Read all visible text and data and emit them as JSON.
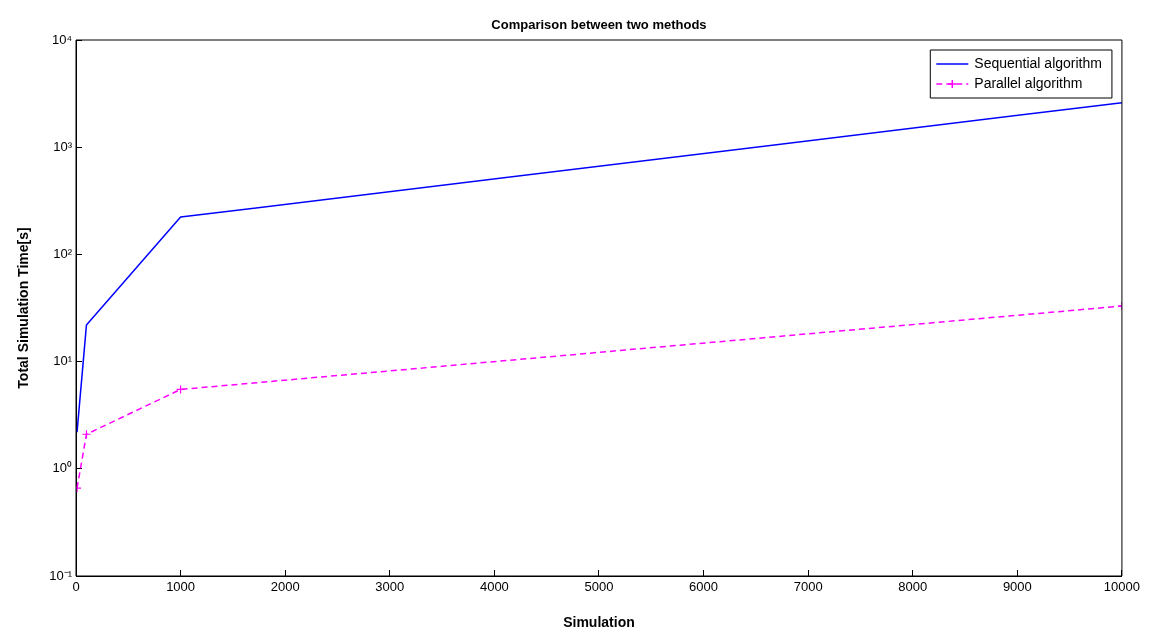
{
  "chart_data": {
    "type": "line",
    "title": "Comparison between two methods",
    "xlabel": "Simulation",
    "ylabel": "Total Simulation Time[s]",
    "x": [
      10,
      100,
      1000,
      10000
    ],
    "series": [
      {
        "name": "Sequential algorithm",
        "color": "#0000ff",
        "values": [
          2.2,
          22,
          223,
          2600
        ],
        "marker": "none",
        "line_style": "solid"
      },
      {
        "name": "Parallel algorithm",
        "color": "#ff00ff",
        "values": [
          0.66,
          2.1,
          5.5,
          33
        ],
        "marker": "cross",
        "line_style": "dashed"
      }
    ],
    "log": "y",
    "xlim": [
      0,
      10000
    ],
    "xticks": [
      0,
      1000,
      2000,
      3000,
      4000,
      5000,
      6000,
      7000,
      8000,
      9000,
      10000
    ],
    "ylim": [
      0.1,
      10000
    ],
    "yticks": [
      {
        "value": 0.1,
        "label": "10⁻¹"
      },
      {
        "value": 1,
        "label": "10⁰"
      },
      {
        "value": 10,
        "label": "10¹"
      },
      {
        "value": 100,
        "label": "10²"
      },
      {
        "value": 1000,
        "label": "10³"
      },
      {
        "value": 10000,
        "label": "10⁴"
      }
    ],
    "grid": false,
    "legend": "top right"
  }
}
